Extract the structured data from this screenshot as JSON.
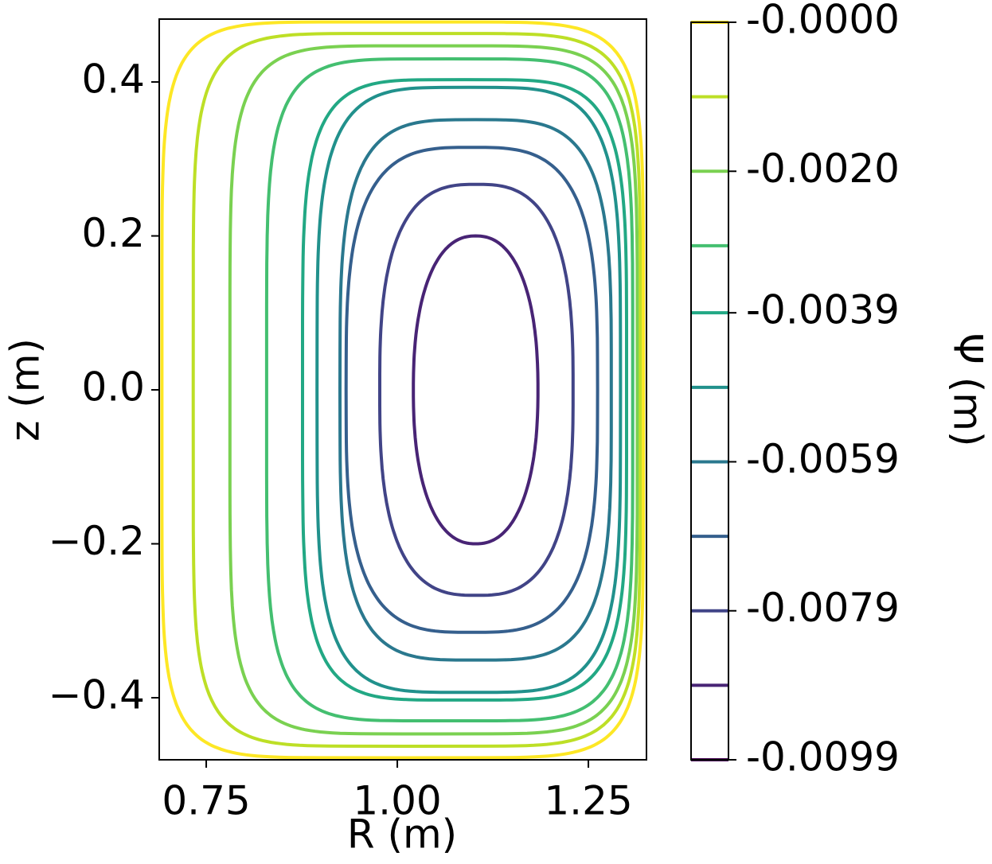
{
  "chart_data": {
    "type": "contour",
    "xlabel": "R (m)",
    "ylabel": "z (m)",
    "colorbar_label": "Ψ (m)",
    "xlim": [
      0.6885,
      1.326
    ],
    "ylim": [
      -0.4806,
      0.4817
    ],
    "xticks": [
      {
        "value": 0.75,
        "label": "0.75"
      },
      {
        "value": 1.0,
        "label": "1.00"
      },
      {
        "value": 1.25,
        "label": "1.25"
      }
    ],
    "yticks": [
      {
        "value": -0.4,
        "label": "−0.4"
      },
      {
        "value": -0.2,
        "label": "−0.2"
      },
      {
        "value": 0,
        "label": "0.0"
      },
      {
        "value": 0.2,
        "label": "0.2"
      },
      {
        "value": 0.4,
        "label": "0.4"
      }
    ],
    "clim": [
      -0.0099,
      0
    ],
    "cticks": [
      {
        "value": 0,
        "label": "-0.0000"
      },
      {
        "value": -0.002,
        "label": "-0.0020"
      },
      {
        "value": -0.0039,
        "label": "-0.0039"
      },
      {
        "value": -0.0059,
        "label": "-0.0059"
      },
      {
        "value": -0.0079,
        "label": "-0.0079"
      },
      {
        "value": -0.0099,
        "label": "-0.0099"
      }
    ],
    "levels": [
      -0.0099,
      -0.0089,
      -0.0079,
      -0.0069,
      -0.0059,
      -0.0049,
      -0.0039,
      -0.003,
      -0.002,
      -0.001,
      0
    ],
    "colors": [
      "#440154",
      "#482475",
      "#414487",
      "#355f8d",
      "#2a788e",
      "#21918c",
      "#22a884",
      "#44bf70",
      "#7ad151",
      "#bddf26",
      "#fde725"
    ],
    "contours": [
      {
        "rmin": 1.021,
        "rmax": 1.184,
        "zmax": 0.2
      },
      {
        "rmin": 0.977,
        "rmax": 1.23,
        "zmax": 0.267
      },
      {
        "rmin": 0.933,
        "rmax": 1.262,
        "zmax": 0.315
      },
      {
        "rmin": 0.925,
        "rmax": 1.28,
        "zmax": 0.351
      },
      {
        "rmin": 0.895,
        "rmax": 1.292,
        "zmax": 0.393
      },
      {
        "rmin": 0.876,
        "rmax": 1.3,
        "zmax": 0.403
      },
      {
        "rmin": 0.829,
        "rmax": 1.308,
        "zmax": 0.43
      },
      {
        "rmin": 0.781,
        "rmax": 1.314,
        "zmax": 0.447
      },
      {
        "rmin": 0.733,
        "rmax": 1.318,
        "zmax": 0.463
      },
      {
        "rmin": 0.692,
        "rmax": 1.322,
        "zmax": 0.478
      }
    ]
  }
}
